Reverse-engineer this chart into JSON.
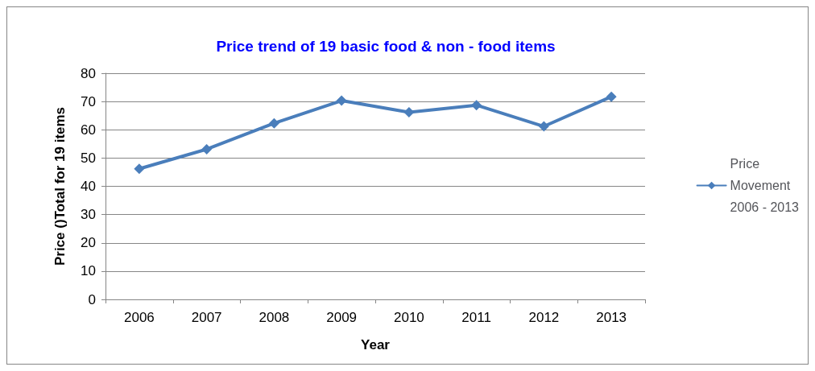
{
  "chart_data": {
    "type": "line",
    "title": "Price trend of 19 basic food & non - food items",
    "xlabel": "Year",
    "ylabel": "Price ()Total for 19 items",
    "categories": [
      "2006",
      "2007",
      "2008",
      "2009",
      "2010",
      "2011",
      "2012",
      "2013"
    ],
    "series": [
      {
        "name": "Price Movement 2006 - 2013",
        "color": "#4a7ebb",
        "values": [
          46.2,
          53.1,
          62.3,
          70.3,
          66.2,
          68.7,
          61.2,
          71.7
        ]
      }
    ],
    "ylim": [
      0,
      80
    ],
    "yticks": [
      0,
      10,
      20,
      30,
      40,
      50,
      60,
      70,
      80
    ],
    "grid": "y",
    "legend": "right",
    "marker": "diamond",
    "line_style": "solid"
  }
}
